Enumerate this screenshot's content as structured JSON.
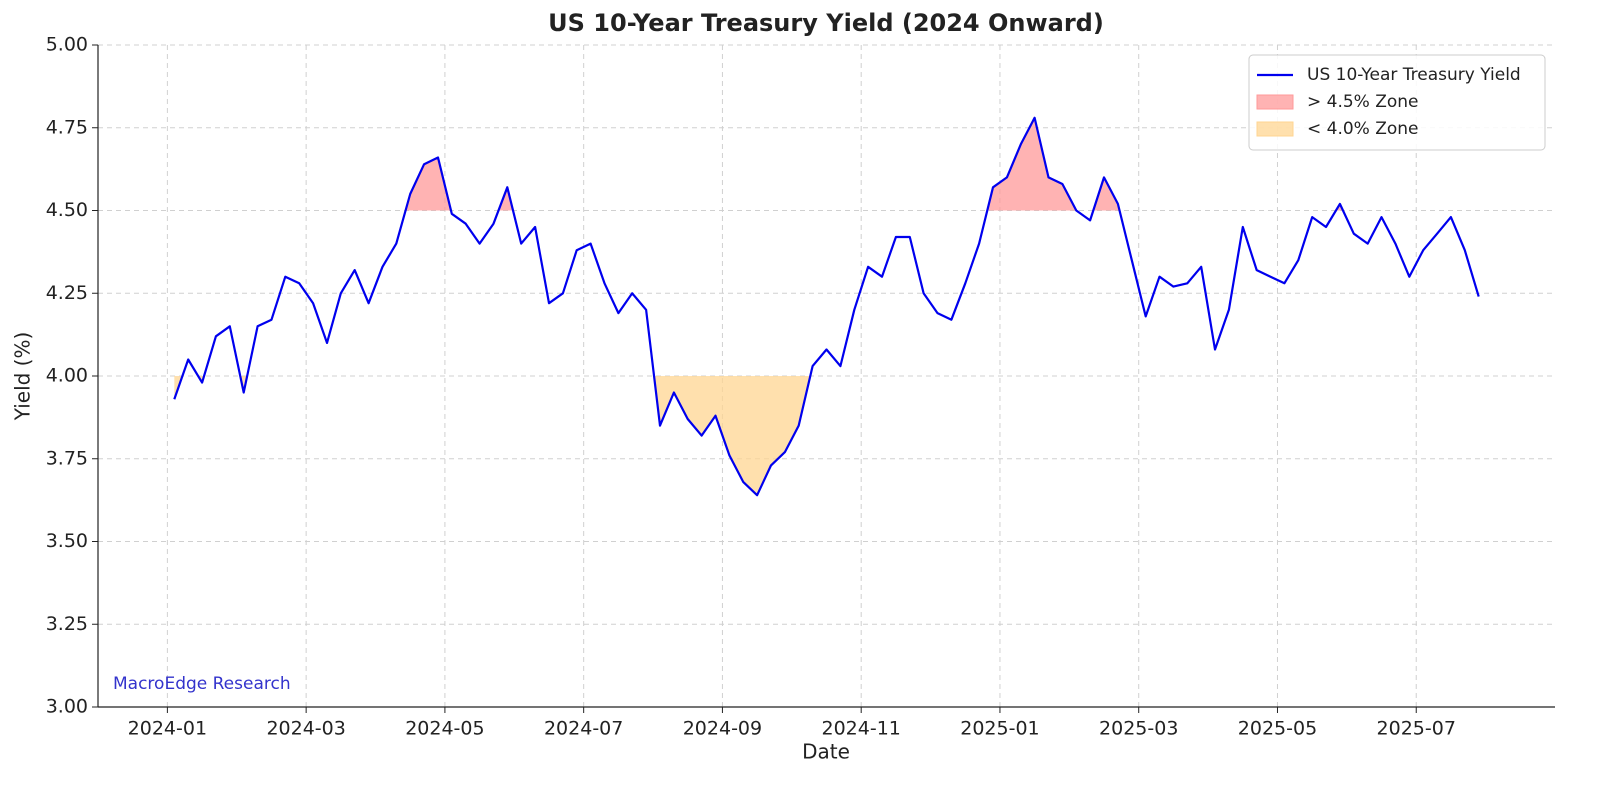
{
  "chart_data": {
    "type": "line",
    "title": "US 10-Year Treasury Yield (2024 Onward)",
    "xlabel": "Date",
    "ylabel": "Yield (%)",
    "annotation": "MacroEdge Research",
    "x": [
      "2024-01",
      "2024-02",
      "2024-03",
      "2024-04",
      "2024-05",
      "2024-06",
      "2024-07",
      "2024-08",
      "2024-09",
      "2024-10",
      "2024-11",
      "2024-12",
      "2025-01",
      "2025-02",
      "2025-03",
      "2025-04",
      "2025-05",
      "2025-06",
      "2025-07"
    ],
    "series": [
      {
        "name": "US 10-Year Treasury Yield",
        "color": "#0000ee",
        "values": [
          [
            3.93,
            4.05,
            3.98,
            4.12,
            4.15
          ],
          [
            3.95,
            4.15,
            4.17,
            4.3,
            4.28
          ],
          [
            4.22,
            4.1,
            4.25,
            4.32,
            4.22
          ],
          [
            4.33,
            4.4,
            4.55,
            4.64,
            4.66
          ],
          [
            4.49,
            4.46,
            4.4,
            4.46,
            4.57
          ],
          [
            4.4,
            4.45,
            4.22,
            4.25,
            4.38
          ],
          [
            4.4,
            4.28,
            4.19,
            4.25,
            4.2
          ],
          [
            3.85,
            3.95,
            3.87,
            3.82,
            3.88
          ],
          [
            3.76,
            3.68,
            3.64,
            3.73,
            3.77
          ],
          [
            3.85,
            4.03,
            4.08,
            4.03,
            4.2
          ],
          [
            4.33,
            4.3,
            4.42,
            4.42,
            4.25
          ],
          [
            4.19,
            4.17,
            4.28,
            4.4,
            4.57
          ],
          [
            4.6,
            4.7,
            4.78,
            4.6,
            4.58
          ],
          [
            4.5,
            4.47,
            4.6,
            4.52,
            4.35
          ],
          [
            4.18,
            4.3,
            4.27,
            4.28,
            4.33
          ],
          [
            4.08,
            4.2,
            4.45,
            4.32,
            4.3
          ],
          [
            4.28,
            4.35,
            4.48,
            4.45,
            4.52
          ],
          [
            4.43,
            4.4,
            4.48,
            4.4,
            4.3
          ],
          [
            4.38,
            4.43,
            4.48,
            4.38,
            4.24
          ]
        ]
      }
    ],
    "zones": [
      {
        "name": "> 4.5% Zone",
        "above": 4.5,
        "color": "#ff9999"
      },
      {
        "name": "< 4.0% Zone",
        "below": 4.0,
        "color": "#ffd591"
      }
    ],
    "xlim": [
      "2023-12",
      "2025-09"
    ],
    "xticks": [
      "2024-01",
      "2024-03",
      "2024-05",
      "2024-07",
      "2024-09",
      "2024-11",
      "2025-01",
      "2025-03",
      "2025-05",
      "2025-07"
    ],
    "ylim": [
      3,
      5
    ],
    "yticks": [
      {
        "value": 3,
        "label": "3.00"
      },
      {
        "value": 3.25,
        "label": "3.25"
      },
      {
        "value": 3.5,
        "label": "3.50"
      },
      {
        "value": 3.75,
        "label": "3.75"
      },
      {
        "value": 4,
        "label": "4.00"
      },
      {
        "value": 4.25,
        "label": "4.25"
      },
      {
        "value": 4.5,
        "label": "4.50"
      },
      {
        "value": 4.75,
        "label": "4.75"
      },
      {
        "value": 5,
        "label": "5.00"
      }
    ],
    "grid": true,
    "legend": "upper right"
  }
}
